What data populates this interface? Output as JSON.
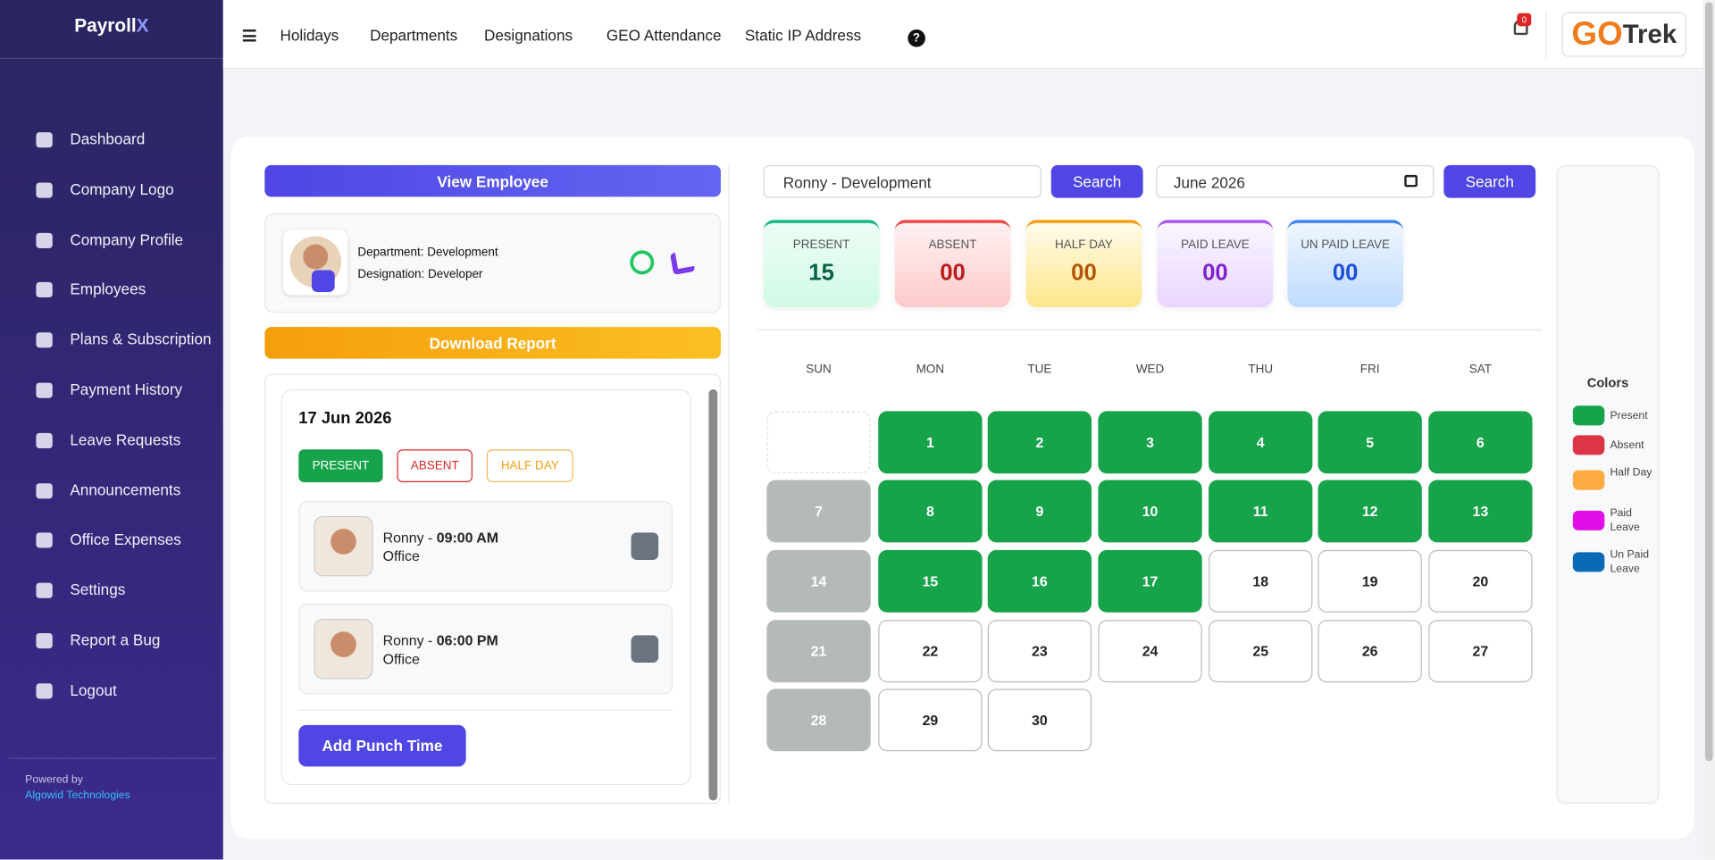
{
  "sidebar": {
    "brand": "Payroll",
    "brand_accent": "X",
    "menu": [
      "Dashboard",
      "Company Logo",
      "Company Profile",
      "Employees",
      "Plans & Subscription",
      "Payment History",
      "Leave Requests",
      "Announcements",
      "Office Expenses",
      "Settings",
      "Report a Bug",
      "Logout"
    ],
    "powered_by": "Powered by",
    "company": "Algowid Technologies"
  },
  "topnav": {
    "links": [
      "Holidays",
      "Departments",
      "Designations",
      "GEO Attendance",
      "Static IP Address"
    ],
    "help": "?",
    "notification_count": "0",
    "logo_a": "GO",
    "logo_b": "Trek"
  },
  "employee_panel": {
    "view_button": "View Employee",
    "department": "Department: Development",
    "designation": "Designation: Developer",
    "download_button": "Download Report",
    "date": "17 Jun 2026",
    "status_buttons": [
      "PRESENT",
      "ABSENT",
      "HALF DAY"
    ],
    "punches": [
      {
        "name": "Ronny -",
        "time": "09:00 AM",
        "location": "Office"
      },
      {
        "name": "Ronny -",
        "time": "06:00 PM",
        "location": "Office"
      }
    ],
    "add_button": "Add Punch Time"
  },
  "filters": {
    "employee": "Ronny - Development",
    "search": "Search",
    "month": "June 2026"
  },
  "summary": [
    {
      "label": "PRESENT",
      "value": "15"
    },
    {
      "label": "ABSENT",
      "value": "00"
    },
    {
      "label": "HALF DAY",
      "value": "00"
    },
    {
      "label": "PAID LEAVE",
      "value": "00"
    },
    {
      "label": "UN PAID LEAVE",
      "value": "00"
    }
  ],
  "calendar": {
    "weekdays": [
      "SUN",
      "MON",
      "TUE",
      "WED",
      "THU",
      "FRI",
      "SAT"
    ],
    "first_weekday": 1,
    "days": [
      {
        "day": 1,
        "status": "present"
      },
      {
        "day": 2,
        "status": "present"
      },
      {
        "day": 3,
        "status": "present"
      },
      {
        "day": 4,
        "status": "present"
      },
      {
        "day": 5,
        "status": "present"
      },
      {
        "day": 6,
        "status": "present"
      },
      {
        "day": 7,
        "status": "weekend"
      },
      {
        "day": 8,
        "status": "present"
      },
      {
        "day": 9,
        "status": "present"
      },
      {
        "day": 10,
        "status": "present"
      },
      {
        "day": 11,
        "status": "present"
      },
      {
        "day": 12,
        "status": "present"
      },
      {
        "day": 13,
        "status": "present"
      },
      {
        "day": 14,
        "status": "weekend"
      },
      {
        "day": 15,
        "status": "present"
      },
      {
        "day": 16,
        "status": "present"
      },
      {
        "day": 17,
        "status": "present"
      },
      {
        "day": 18,
        "status": "none"
      },
      {
        "day": 19,
        "status": "none"
      },
      {
        "day": 20,
        "status": "none"
      },
      {
        "day": 21,
        "status": "weekend"
      },
      {
        "day": 22,
        "status": "none"
      },
      {
        "day": 23,
        "status": "none"
      },
      {
        "day": 24,
        "status": "none"
      },
      {
        "day": 25,
        "status": "none"
      },
      {
        "day": 26,
        "status": "none"
      },
      {
        "day": 27,
        "status": "none"
      },
      {
        "day": 28,
        "status": "weekend"
      },
      {
        "day": 29,
        "status": "none"
      },
      {
        "day": 30,
        "status": "none"
      }
    ]
  },
  "legend": {
    "title": "Colors",
    "items": [
      {
        "label": "Present",
        "color": "#16a34a"
      },
      {
        "label": "Absent",
        "color": "#dc3545"
      },
      {
        "label": "Half Day",
        "color": "#fdac41"
      },
      {
        "label": "Paid Leave",
        "color": "#e10ee8"
      },
      {
        "label": "Un Paid Leave",
        "color": "#0b6ab8"
      }
    ]
  }
}
